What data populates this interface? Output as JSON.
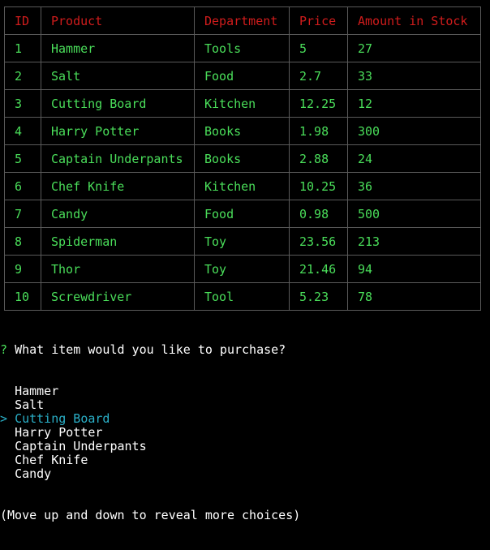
{
  "table": {
    "headers": [
      "ID",
      "Product",
      "Department",
      "Price",
      "Amount in Stock"
    ],
    "rows": [
      [
        "1",
        "Hammer",
        "Tools",
        "5",
        "27"
      ],
      [
        "2",
        "Salt",
        "Food",
        "2.7",
        "33"
      ],
      [
        "3",
        "Cutting Board",
        "Kitchen",
        "12.25",
        "12"
      ],
      [
        "4",
        "Harry Potter",
        "Books",
        "1.98",
        "300"
      ],
      [
        "5",
        "Captain Underpants",
        "Books",
        "2.88",
        "24"
      ],
      [
        "6",
        "Chef Knife",
        "Kitchen",
        "10.25",
        "36"
      ],
      [
        "7",
        "Candy",
        "Food",
        "0.98",
        "500"
      ],
      [
        "8",
        "Spiderman",
        "Toy",
        "23.56",
        "213"
      ],
      [
        "9",
        "Thor",
        "Toy",
        "21.46",
        "94"
      ],
      [
        "10",
        "Screwdriver",
        "Tool",
        "5.23",
        "78"
      ]
    ]
  },
  "prompt": {
    "mark": "?",
    "question": "What item would you like to purchase?",
    "pointer": ">",
    "choices": [
      "Hammer",
      "Salt",
      "Cutting Board",
      "Harry Potter",
      "Captain Underpants",
      "Chef Knife",
      "Candy"
    ],
    "selected_index": 2,
    "hint": "(Move up and down to reveal more choices)"
  },
  "colors": {
    "background": "#000000",
    "header_text": "#d01c1c",
    "cell_text": "#4ade5a",
    "border": "#5a5a5a",
    "selected_choice": "#2ab0c8",
    "prompt_text": "#ffffff"
  }
}
